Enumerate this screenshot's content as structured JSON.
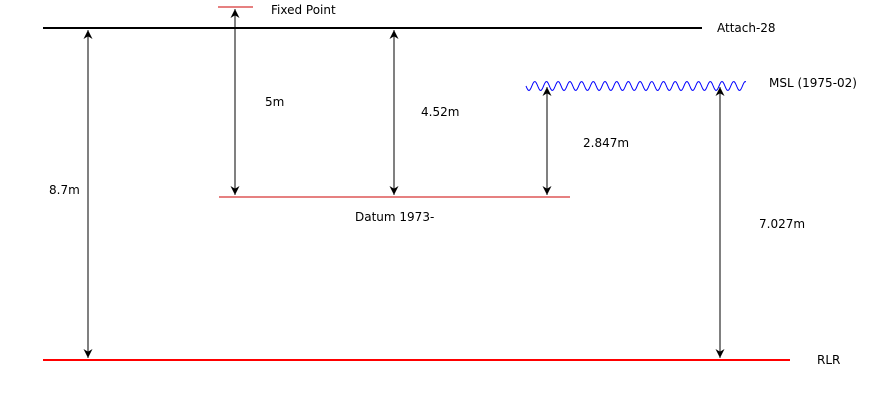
{
  "levels": {
    "fixed_point": {
      "label": "Fixed Point",
      "color": "#cc0000"
    },
    "attach": {
      "label": "Attach-28",
      "color": "#000000"
    },
    "msl": {
      "label": "MSL (1975-02)",
      "color": "#0000ff"
    },
    "datum": {
      "label": "Datum 1973-",
      "color": "#cc0000"
    },
    "rlr": {
      "label": "RLR",
      "color": "#ff0000"
    }
  },
  "measurements": {
    "rlr_to_attach": {
      "label": "8.7m",
      "value_m": 8.7
    },
    "datum_to_fixed_point": {
      "label": "5m",
      "value_m": 5
    },
    "datum_to_attach": {
      "label": "4.52m",
      "value_m": 4.52
    },
    "datum_to_msl": {
      "label": "2.847m",
      "value_m": 2.847
    },
    "rlr_to_msl": {
      "label": "7.027m",
      "value_m": 7.027
    }
  }
}
